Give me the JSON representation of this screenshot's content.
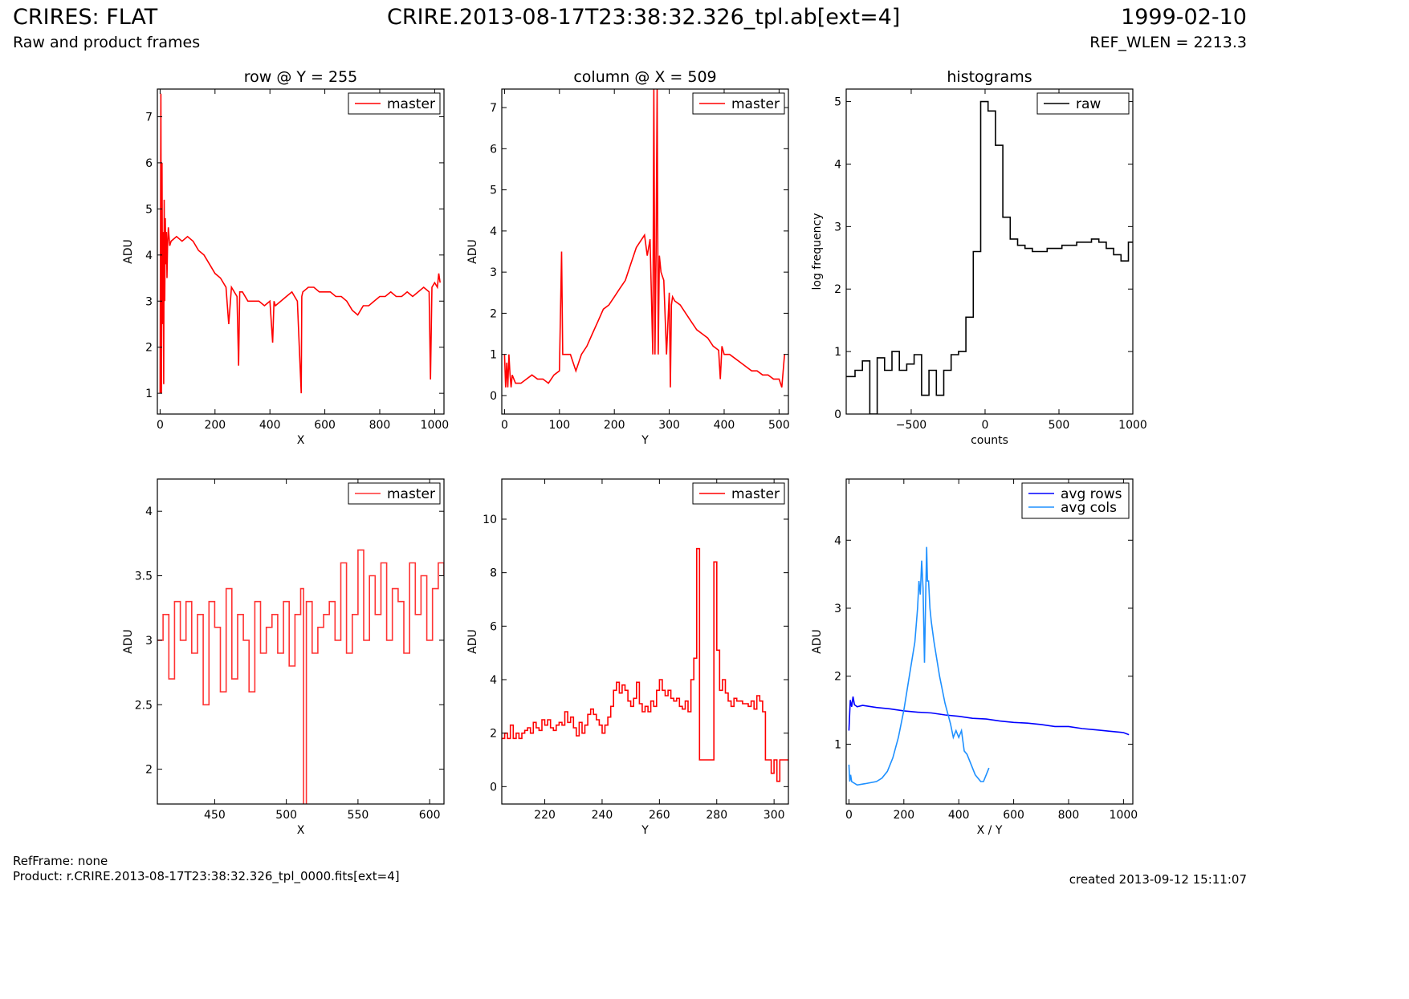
{
  "header": {
    "title": "CRIRES: FLAT",
    "subtitle": "Raw and product frames",
    "filename": "CRIRE.2013-08-17T23:38:32.326_tpl.ab[ext=4]",
    "date": "1999-02-10",
    "ref_wlen": "REF_WLEN = 2213.3"
  },
  "footer": {
    "refframe": "RefFrame: none",
    "product": "Product: r.CRIRE.2013-08-17T23:38:32.326_tpl_0000.fits[ext=4]",
    "created": "created 2013-09-12 15:11:07"
  },
  "colors": {
    "master": "#ff0000",
    "master_zoom": "#ff3333",
    "raw": "#000000",
    "avg_rows": "#0000ff",
    "avg_cols": "#1e90ff"
  },
  "chart_data": [
    {
      "id": "row",
      "type": "line",
      "title": "row @ Y = 255",
      "xlabel": "X",
      "ylabel": "ADU",
      "xlim": [
        -10,
        1034
      ],
      "ylim": [
        0.55,
        7.6
      ],
      "xticks": [
        0,
        200,
        400,
        600,
        800,
        1000
      ],
      "yticks": [
        1,
        2,
        3,
        4,
        5,
        6,
        7
      ],
      "legend": {
        "position": "top-right",
        "entries": [
          "master"
        ]
      },
      "series": [
        {
          "name": "master",
          "color": "#ff0000",
          "x": [
            0,
            3,
            5,
            7,
            9,
            11,
            13,
            15,
            17,
            19,
            21,
            23,
            25,
            27,
            30,
            35,
            40,
            60,
            80,
            100,
            120,
            140,
            160,
            180,
            200,
            220,
            240,
            250,
            260,
            280,
            286,
            290,
            300,
            320,
            340,
            360,
            380,
            400,
            410,
            415,
            420,
            440,
            460,
            480,
            500,
            514,
            516,
            520,
            540,
            560,
            580,
            600,
            620,
            640,
            660,
            680,
            700,
            720,
            740,
            760,
            780,
            800,
            820,
            840,
            860,
            880,
            900,
            920,
            940,
            960,
            980,
            985,
            990,
            1000,
            1010,
            1015,
            1020
          ],
          "y": [
            1.0,
            7.5,
            1.0,
            6.0,
            2.5,
            4.5,
            1.2,
            5.2,
            3.0,
            4.8,
            3.8,
            4.5,
            3.5,
            4.2,
            4.6,
            4.2,
            4.3,
            4.4,
            4.3,
            4.4,
            4.3,
            4.1,
            4.0,
            3.8,
            3.6,
            3.5,
            3.3,
            2.5,
            3.3,
            3.1,
            1.6,
            3.2,
            3.2,
            3.0,
            3.0,
            3.0,
            2.9,
            3.0,
            2.1,
            3.0,
            2.9,
            3.0,
            3.1,
            3.2,
            3.0,
            1.0,
            3.1,
            3.2,
            3.3,
            3.3,
            3.2,
            3.2,
            3.2,
            3.1,
            3.1,
            3.0,
            2.8,
            2.7,
            2.9,
            2.9,
            3.0,
            3.1,
            3.1,
            3.2,
            3.1,
            3.1,
            3.2,
            3.1,
            3.2,
            3.3,
            3.2,
            1.3,
            3.3,
            3.4,
            3.3,
            3.6,
            3.4
          ]
        }
      ]
    },
    {
      "id": "column",
      "type": "line",
      "title": "column @ X = 509",
      "xlabel": "Y",
      "ylabel": "ADU",
      "xlim": [
        -5,
        517
      ],
      "ylim": [
        -0.45,
        7.45
      ],
      "xticks": [
        0,
        100,
        200,
        300,
        400,
        500
      ],
      "yticks": [
        0,
        1,
        2,
        3,
        4,
        5,
        6,
        7
      ],
      "legend": {
        "position": "top-right",
        "entries": [
          "master"
        ]
      },
      "series": [
        {
          "name": "master",
          "color": "#ff0000",
          "x": [
            0,
            2,
            4,
            6,
            8,
            10,
            12,
            14,
            20,
            30,
            40,
            50,
            60,
            70,
            80,
            90,
            100,
            104,
            106,
            108,
            110,
            120,
            130,
            140,
            150,
            160,
            170,
            180,
            190,
            200,
            210,
            220,
            230,
            240,
            250,
            255,
            260,
            265,
            270,
            272,
            274,
            276,
            278,
            280,
            282,
            285,
            290,
            295,
            300,
            302,
            304,
            306,
            310,
            320,
            330,
            340,
            350,
            360,
            370,
            380,
            390,
            393,
            396,
            400,
            410,
            420,
            430,
            440,
            450,
            460,
            470,
            480,
            490,
            500,
            505,
            510
          ],
          "y": [
            1.0,
            0.2,
            0.8,
            0.2,
            1.0,
            0.5,
            0.2,
            0.5,
            0.3,
            0.3,
            0.4,
            0.5,
            0.4,
            0.4,
            0.3,
            0.5,
            0.6,
            3.5,
            1.0,
            1.0,
            1.0,
            1.0,
            0.6,
            1.0,
            1.2,
            1.5,
            1.8,
            2.1,
            2.2,
            2.4,
            2.6,
            2.8,
            3.2,
            3.6,
            3.8,
            3.9,
            3.4,
            3.8,
            1.0,
            7.5,
            1.0,
            3.5,
            7.5,
            1.0,
            3.4,
            3.0,
            2.8,
            1.0,
            2.5,
            0.2,
            2.2,
            2.4,
            2.3,
            2.2,
            2.0,
            1.8,
            1.6,
            1.5,
            1.4,
            1.2,
            1.1,
            0.4,
            1.2,
            1.0,
            1.0,
            0.9,
            0.8,
            0.7,
            0.6,
            0.6,
            0.5,
            0.5,
            0.4,
            0.4,
            0.2,
            1.0
          ]
        }
      ]
    },
    {
      "id": "hist",
      "type": "line",
      "title": "histograms",
      "xlabel": "counts",
      "ylabel": "log frequency",
      "xlim": [
        -940,
        1000
      ],
      "ylim": [
        0,
        5.2
      ],
      "xticks": [
        -500,
        0,
        500,
        1000
      ],
      "yticks": [
        0,
        1,
        2,
        3,
        4,
        5
      ],
      "legend": {
        "position": "top-right",
        "entries": [
          "raw"
        ]
      },
      "series": [
        {
          "name": "raw",
          "color": "#000000",
          "step": true,
          "x": [
            -940,
            -880,
            -830,
            -780,
            -730,
            -680,
            -630,
            -580,
            -530,
            -480,
            -430,
            -380,
            -330,
            -280,
            -230,
            -180,
            -130,
            -80,
            -30,
            20,
            70,
            120,
            170,
            220,
            270,
            320,
            370,
            420,
            470,
            520,
            570,
            620,
            670,
            720,
            770,
            820,
            870,
            920,
            970,
            1000
          ],
          "y": [
            0.6,
            0.7,
            0.85,
            0.0,
            0.9,
            0.7,
            1.0,
            0.7,
            0.8,
            0.95,
            0.3,
            0.7,
            0.3,
            0.7,
            0.95,
            1.0,
            1.55,
            2.6,
            5.0,
            4.85,
            4.3,
            3.15,
            2.8,
            2.7,
            2.65,
            2.6,
            2.6,
            2.65,
            2.65,
            2.7,
            2.7,
            2.75,
            2.75,
            2.8,
            2.75,
            2.65,
            2.55,
            2.45,
            2.75,
            2.75
          ]
        }
      ]
    },
    {
      "id": "row-zoom",
      "type": "line",
      "title": "",
      "xlabel": "X",
      "ylabel": "ADU",
      "xlim": [
        410,
        610
      ],
      "ylim": [
        1.73,
        4.25
      ],
      "xticks": [
        450,
        500,
        550,
        600
      ],
      "yticks": [
        2.0,
        2.5,
        3.0,
        3.5,
        4.0
      ],
      "legend": {
        "position": "top-right",
        "entries": [
          "master"
        ]
      },
      "series": [
        {
          "name": "master",
          "color": "#ff3333",
          "step": true,
          "x": [
            410,
            414,
            418,
            422,
            426,
            430,
            434,
            438,
            442,
            446,
            450,
            454,
            458,
            462,
            466,
            470,
            474,
            478,
            482,
            486,
            490,
            494,
            498,
            502,
            506,
            510,
            512,
            514,
            518,
            522,
            526,
            530,
            534,
            538,
            542,
            546,
            550,
            554,
            558,
            562,
            566,
            570,
            574,
            578,
            582,
            586,
            590,
            594,
            598,
            602,
            606,
            610
          ],
          "y": [
            3.0,
            3.2,
            2.7,
            3.3,
            3.0,
            3.3,
            2.9,
            3.2,
            2.5,
            3.3,
            3.1,
            2.6,
            3.4,
            2.7,
            3.2,
            3.0,
            2.6,
            3.3,
            2.9,
            3.1,
            3.2,
            2.9,
            3.3,
            2.8,
            3.2,
            3.4,
            1.7,
            3.3,
            2.9,
            3.1,
            3.2,
            3.3,
            3.0,
            3.6,
            2.9,
            3.2,
            3.7,
            3.0,
            3.5,
            3.2,
            3.6,
            3.0,
            3.4,
            3.3,
            2.9,
            3.6,
            3.2,
            3.5,
            3.0,
            3.4,
            3.6,
            3.5
          ]
        }
      ]
    },
    {
      "id": "column-zoom",
      "type": "line",
      "title": "",
      "xlabel": "Y",
      "ylabel": "ADU",
      "xlim": [
        205,
        305
      ],
      "ylim": [
        -0.65,
        11.5
      ],
      "xticks": [
        220,
        240,
        260,
        280,
        300
      ],
      "yticks": [
        0,
        2,
        4,
        6,
        8,
        10
      ],
      "legend": {
        "position": "top-right",
        "entries": [
          "master"
        ]
      },
      "series": [
        {
          "name": "master",
          "color": "#ff0000",
          "step": true,
          "x": [
            205,
            206,
            207,
            208,
            209,
            210,
            211,
            212,
            213,
            214,
            215,
            216,
            217,
            218,
            219,
            220,
            221,
            222,
            223,
            224,
            225,
            226,
            227,
            228,
            229,
            230,
            231,
            232,
            233,
            234,
            235,
            236,
            237,
            238,
            239,
            240,
            241,
            242,
            243,
            244,
            245,
            246,
            247,
            248,
            249,
            250,
            251,
            252,
            253,
            254,
            255,
            256,
            257,
            258,
            259,
            260,
            261,
            262,
            263,
            264,
            265,
            266,
            267,
            268,
            269,
            270,
            271,
            272,
            273,
            274,
            275,
            276,
            277,
            278,
            279,
            280,
            281,
            282,
            283,
            284,
            285,
            286,
            287,
            288,
            289,
            290,
            291,
            292,
            293,
            294,
            295,
            296,
            297,
            298,
            299,
            300,
            301,
            302,
            303,
            304,
            305
          ],
          "y": [
            1.8,
            2.0,
            1.8,
            2.3,
            1.8,
            2.0,
            1.8,
            2.0,
            2.1,
            2.2,
            2.0,
            2.4,
            2.2,
            2.1,
            2.5,
            2.3,
            2.5,
            2.2,
            2.1,
            2.3,
            2.4,
            2.3,
            2.8,
            2.4,
            2.6,
            2.2,
            1.9,
            2.4,
            2.0,
            2.3,
            2.7,
            2.9,
            2.7,
            2.5,
            2.3,
            2.0,
            2.3,
            2.6,
            3.0,
            3.6,
            3.9,
            3.5,
            3.8,
            3.6,
            3.2,
            3.0,
            3.3,
            3.9,
            3.1,
            2.8,
            3.0,
            2.8,
            3.2,
            3.0,
            3.6,
            4.0,
            3.6,
            3.4,
            3.6,
            3.3,
            3.2,
            3.3,
            3.0,
            2.9,
            3.2,
            2.8,
            4.0,
            4.8,
            8.9,
            1.0,
            1.0,
            1.0,
            1.0,
            1.0,
            8.4,
            5.1,
            3.6,
            4.0,
            3.5,
            3.2,
            3.0,
            3.3,
            3.2,
            3.2,
            3.1,
            3.1,
            3.0,
            3.2,
            2.9,
            3.4,
            3.2,
            2.8,
            1.0,
            1.0,
            0.5,
            1.0,
            0.2,
            1.0,
            1.0,
            1.0,
            1.0
          ]
        }
      ]
    },
    {
      "id": "averages",
      "type": "line",
      "title": "",
      "xlabel": "X / Y",
      "ylabel": "ADU",
      "xlim": [
        -10,
        1034
      ],
      "ylim": [
        0.12,
        4.9
      ],
      "xticks": [
        0,
        200,
        400,
        600,
        800,
        1000
      ],
      "yticks": [
        1,
        2,
        3,
        4
      ],
      "legend": {
        "position": "top-right",
        "entries": [
          "avg rows",
          "avg cols"
        ]
      },
      "series": [
        {
          "name": "avg rows",
          "color": "#0000ff",
          "x": [
            0,
            5,
            10,
            15,
            20,
            30,
            50,
            100,
            150,
            200,
            250,
            300,
            350,
            400,
            450,
            500,
            550,
            600,
            650,
            700,
            750,
            800,
            850,
            900,
            950,
            1000,
            1020
          ],
          "y": [
            1.2,
            1.65,
            1.55,
            1.7,
            1.58,
            1.55,
            1.57,
            1.54,
            1.52,
            1.49,
            1.47,
            1.46,
            1.43,
            1.41,
            1.38,
            1.37,
            1.34,
            1.32,
            1.31,
            1.29,
            1.26,
            1.26,
            1.23,
            1.21,
            1.19,
            1.17,
            1.14
          ]
        },
        {
          "name": "avg cols",
          "color": "#1e90ff",
          "x": [
            0,
            3,
            6,
            10,
            30,
            60,
            100,
            120,
            140,
            160,
            180,
            200,
            220,
            240,
            250,
            255,
            260,
            265,
            270,
            275,
            280,
            283,
            286,
            290,
            295,
            300,
            310,
            330,
            350,
            370,
            380,
            390,
            400,
            410,
            420,
            430,
            440,
            450,
            460,
            470,
            480,
            490,
            500,
            510
          ],
          "y": [
            0.7,
            0.45,
            0.55,
            0.45,
            0.4,
            0.42,
            0.45,
            0.5,
            0.6,
            0.8,
            1.1,
            1.5,
            2.0,
            2.5,
            3.0,
            3.4,
            3.2,
            3.7,
            3.3,
            2.2,
            3.3,
            3.9,
            3.4,
            3.4,
            3.0,
            2.8,
            2.5,
            2.0,
            1.6,
            1.3,
            1.1,
            1.2,
            1.1,
            1.2,
            0.9,
            0.85,
            0.75,
            0.65,
            0.55,
            0.5,
            0.45,
            0.45,
            0.55,
            0.65
          ]
        }
      ]
    }
  ]
}
